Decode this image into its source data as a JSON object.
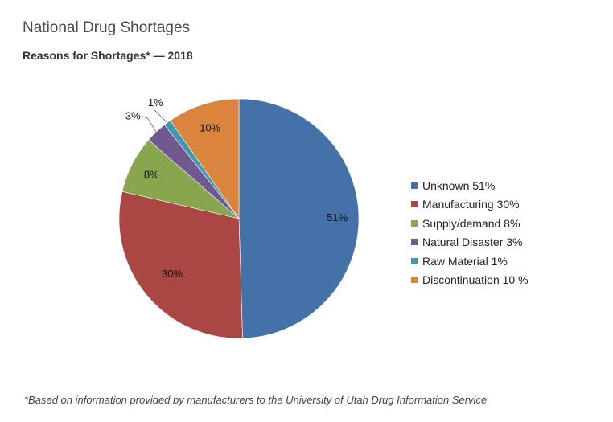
{
  "page": {
    "title": "National Drug Shortages"
  },
  "chart_data": {
    "type": "pie",
    "title": "Reasons for Shortages* — 2018",
    "categories": [
      "Unknown",
      "Manufacturing",
      "Supply/demand",
      "Natural Disaster",
      "Raw Material",
      "Discontinuation"
    ],
    "values": [
      51,
      30,
      8,
      3,
      1,
      10
    ],
    "data_labels": [
      "51%",
      "30%",
      "8%",
      "3%",
      "1%",
      "10%"
    ],
    "legend_entries": [
      "Unknown 51%",
      "Manufacturing 30%",
      "Supply/demand 8%",
      "Natural Disaster 3%",
      "Raw Material 1%",
      "Discontinuation 10 %"
    ],
    "colors": [
      "#4472a8",
      "#aa4643",
      "#89a54e",
      "#71588f",
      "#4198af",
      "#db843d"
    ],
    "legend_position": "right",
    "start_angle_deg": 0,
    "direction": "clockwise"
  },
  "footnote": "*Based on information provided by manufacturers to the University of Utah Drug Information Service"
}
